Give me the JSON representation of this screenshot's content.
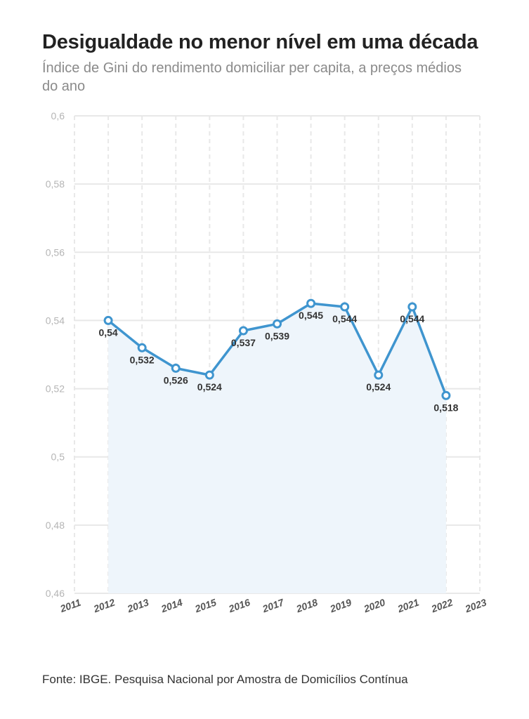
{
  "header": {
    "title": "Desigualdade no menor nível em uma década",
    "subtitle": "Índice de Gini do rendimento domiciliar per capita, a preços médios do ano"
  },
  "footer": {
    "source": "Fonte: IBGE. Pesquisa Nacional por Amostra de Domicílios Contínua"
  },
  "chart_data": {
    "type": "area",
    "title": "Desigualdade no menor nível em uma década",
    "subtitle": "Índice de Gini do rendimento domiciliar per capita, a preços médios do ano",
    "x": [
      2012,
      2013,
      2014,
      2015,
      2016,
      2017,
      2018,
      2019,
      2020,
      2021,
      2022
    ],
    "y": [
      0.54,
      0.532,
      0.526,
      0.524,
      0.537,
      0.539,
      0.545,
      0.544,
      0.524,
      0.544,
      0.518
    ],
    "data_labels": [
      "0,54",
      "0,532",
      "0,526",
      "0,524",
      "0,537",
      "0,539",
      "0,545",
      "0,544",
      "0,524",
      "0,544",
      "0,518"
    ],
    "x_ticks": [
      "2011",
      "2012",
      "2013",
      "2014",
      "2015",
      "2016",
      "2017",
      "2018",
      "2019",
      "2020",
      "2021",
      "2022",
      "2023"
    ],
    "x_range": [
      2011,
      2023
    ],
    "y_ticks": [
      "0,46",
      "0,48",
      "0,5",
      "0,52",
      "0,54",
      "0,56",
      "0,58",
      "0,6"
    ],
    "y_tick_values": [
      0.46,
      0.48,
      0.5,
      0.52,
      0.54,
      0.56,
      0.58,
      0.6
    ],
    "ylim": [
      0.46,
      0.6
    ],
    "grid": true,
    "colors": {
      "line": "#3f95cf",
      "area": "#eef5fb",
      "grid": "#e8e8e8"
    }
  }
}
